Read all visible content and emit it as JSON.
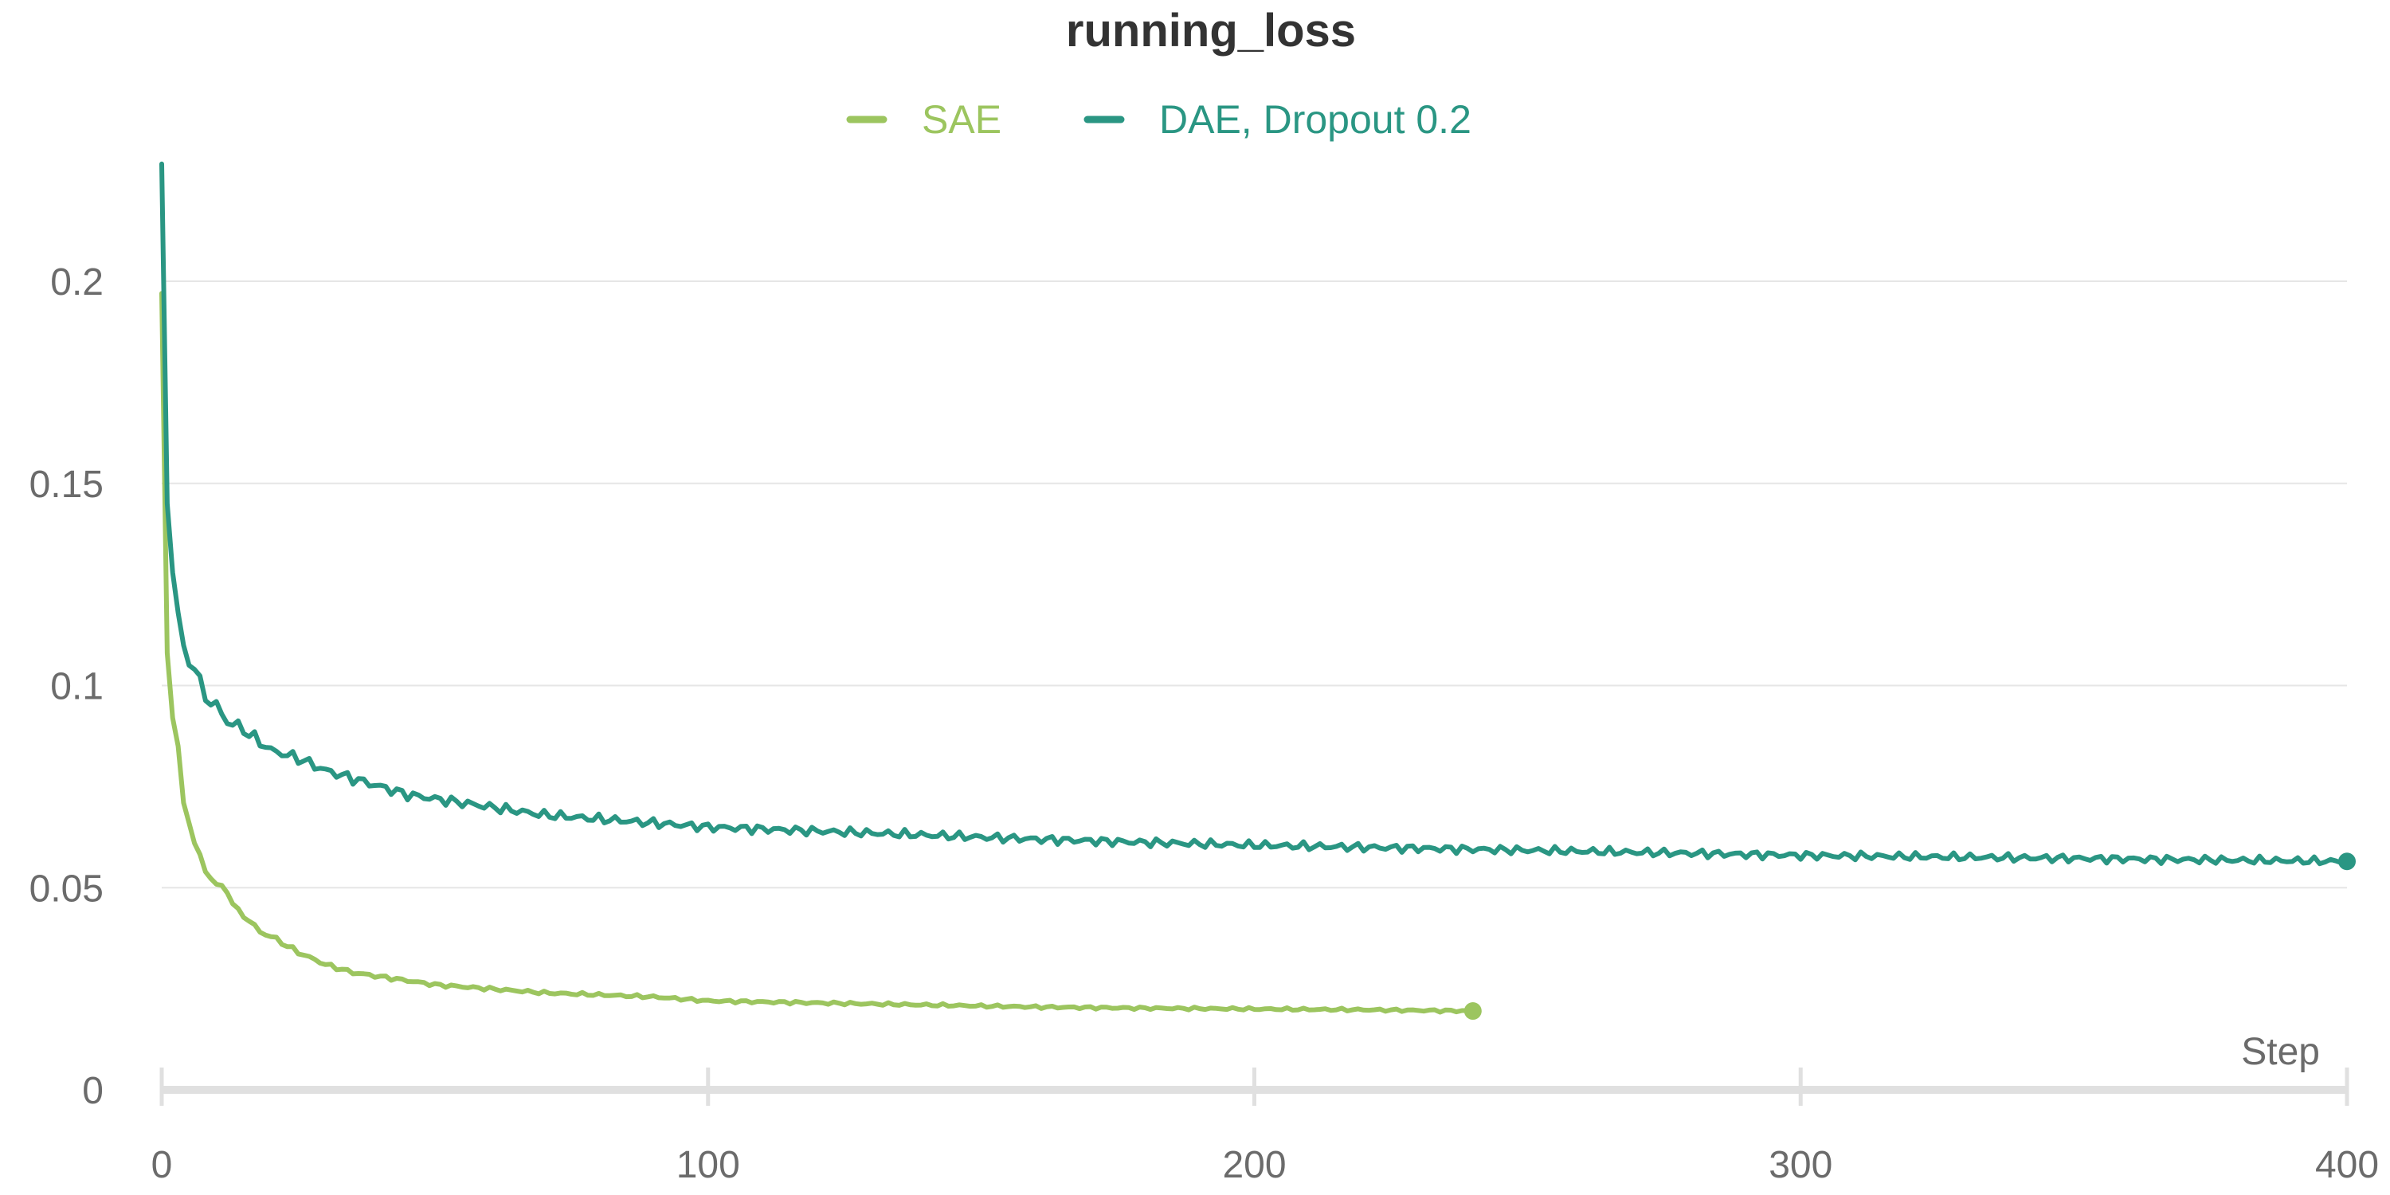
{
  "chart_data": {
    "type": "line",
    "title": "running_loss",
    "xlabel": "Step",
    "ylabel": "",
    "xlim": [
      0,
      400
    ],
    "ylim": [
      0,
      0.23
    ],
    "x_ticks": [
      0,
      100,
      200,
      300,
      400
    ],
    "y_ticks": [
      0,
      0.05,
      0.1,
      0.15,
      0.2
    ],
    "y_tick_labels": [
      "0",
      "0.05",
      "0.1",
      "0.15",
      "0.2"
    ],
    "grid": true,
    "legend_position": "top-center",
    "series": [
      {
        "name": "SAE",
        "color": "#9cc55f",
        "end_marker": true,
        "x": [
          0,
          1,
          2,
          3,
          4,
          5,
          6,
          8,
          10,
          12,
          14,
          16,
          18,
          20,
          25,
          30,
          35,
          40,
          45,
          50,
          55,
          60,
          65,
          70,
          80,
          90,
          100,
          120,
          140,
          160,
          180,
          200,
          220,
          240
        ],
        "y": [
          0.197,
          0.108,
          0.092,
          0.085,
          0.071,
          0.066,
          0.061,
          0.054,
          0.051,
          0.049,
          0.044,
          0.042,
          0.039,
          0.038,
          0.034,
          0.031,
          0.029,
          0.028,
          0.027,
          0.026,
          0.0255,
          0.025,
          0.0245,
          0.024,
          0.0235,
          0.023,
          0.022,
          0.0215,
          0.021,
          0.0205,
          0.0202,
          0.02,
          0.0198,
          0.0195
        ]
      },
      {
        "name": "DAE, Dropout 0.2",
        "color": "#2a9683",
        "end_marker": true,
        "x": [
          0,
          1,
          2,
          3,
          4,
          5,
          6,
          8,
          10,
          12,
          14,
          16,
          18,
          20,
          25,
          30,
          35,
          40,
          45,
          50,
          55,
          60,
          65,
          70,
          80,
          90,
          100,
          120,
          140,
          160,
          180,
          200,
          220,
          240,
          260,
          280,
          300,
          320,
          340,
          360,
          380,
          400
        ],
        "y": [
          0.229,
          0.145,
          0.128,
          0.118,
          0.11,
          0.105,
          0.104,
          0.097,
          0.095,
          0.091,
          0.09,
          0.088,
          0.086,
          0.084,
          0.082,
          0.079,
          0.077,
          0.075,
          0.073,
          0.072,
          0.071,
          0.07,
          0.069,
          0.068,
          0.067,
          0.066,
          0.065,
          0.064,
          0.063,
          0.062,
          0.0612,
          0.0605,
          0.06,
          0.0595,
          0.059,
          0.0585,
          0.058,
          0.0577,
          0.0574,
          0.0571,
          0.0568,
          0.0565
        ]
      }
    ]
  }
}
